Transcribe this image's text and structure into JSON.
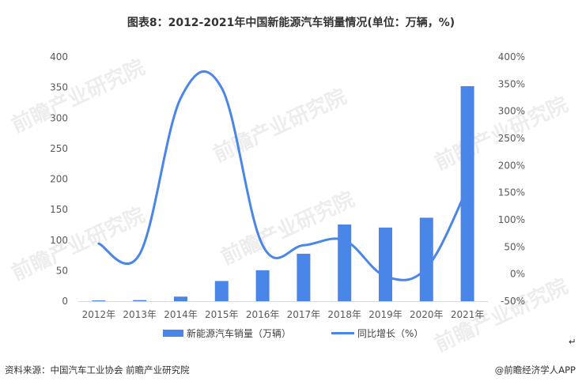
{
  "chart_data": {
    "type": "bar",
    "title": "图表8：2012-2021年中国新能源汽车销量情况(单位：万辆，%)",
    "categories": [
      "2012年",
      "2013年",
      "2014年",
      "2015年",
      "2016年",
      "2017年",
      "2018年",
      "2019年",
      "2020年",
      "2021年"
    ],
    "series": [
      {
        "name": "新能源汽车销量（万辆）",
        "type": "bar",
        "axis": "left",
        "values": [
          1.3,
          1.8,
          7.5,
          33.1,
          50.7,
          77.7,
          125.6,
          120.6,
          136.7,
          352.1
        ]
      },
      {
        "name": "同比增长（%）",
        "type": "line",
        "axis": "right",
        "values": [
          56,
          37,
          324,
          343,
          53,
          53,
          62,
          -4,
          11,
          158
        ]
      }
    ],
    "ylim": [
      0,
      400
    ],
    "y_ticks": [
      "0",
      "50",
      "100",
      "150",
      "200",
      "250",
      "300",
      "350",
      "400"
    ],
    "y2lim": [
      -50,
      400
    ],
    "y2_ticks": [
      "-50%",
      "0%",
      "50%",
      "100%",
      "150%",
      "200%",
      "250%",
      "300%",
      "350%",
      "400%"
    ],
    "grid": false,
    "legend_position": "bottom",
    "colors": {
      "bar": "#4a86e8",
      "line": "#4a86e8",
      "axis": "#d9d9d9",
      "text": "#595959"
    }
  },
  "footer": {
    "source": "资料来源：中国汽车工业协会 前瞻产业研究院",
    "brand": "@前瞻经济学人APP",
    "return_mark": "↵"
  },
  "watermark": {
    "text": "前瞻产业研究院"
  }
}
